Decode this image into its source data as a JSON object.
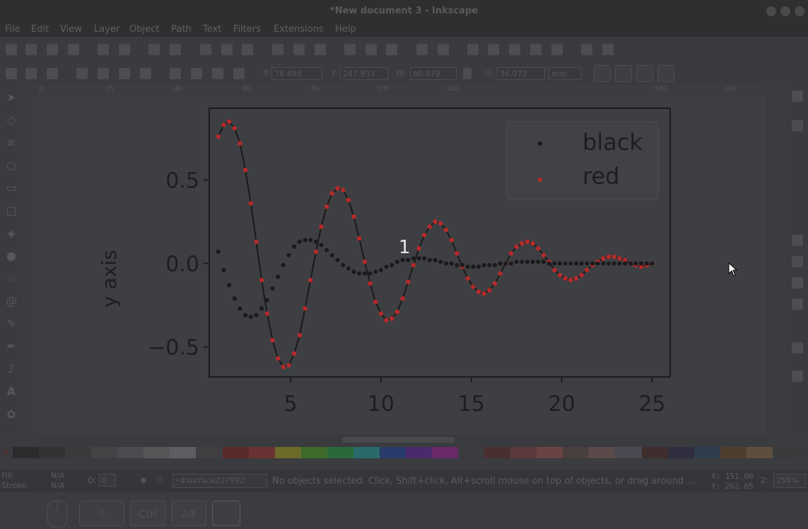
{
  "window": {
    "title": "*New document 3 - Inkscape"
  },
  "menu": [
    "File",
    "Edit",
    "View",
    "Layer",
    "Object",
    "Path",
    "Text",
    "Filters",
    "Extensions",
    "Help"
  ],
  "toolbar2": {
    "x_label": "X:",
    "x_value": "78.498",
    "y_label": "Y:",
    "y_value": "247.933",
    "w_label": "W:",
    "w_value": "60.879",
    "h_label": "H:",
    "h_value": "36.073",
    "unit": "mm"
  },
  "ruler_top": [
    "0",
    "20",
    "40",
    "60",
    "80",
    "100",
    "120",
    "140",
    "150"
  ],
  "key_hints": {
    "ctrl": "Ctrl",
    "alt": "Alt"
  },
  "status": {
    "fill_label": "Fill:",
    "fill_value": "N/A",
    "stroke_label": "Stroke:",
    "stroke_value": "N/A",
    "opacity_label": "O:",
    "opacity_value": "0",
    "layer": "•#surface237992",
    "message": "No objects selected. Click, Shift+click, Alt+scroll mouse on top of objects, or drag around ...",
    "x_coord": "X: 151.00",
    "y_coord": "Y: 262.65",
    "zoom_label": "Z:",
    "zoom_value": "258%"
  },
  "palette_colors": [
    "#2c2c2e",
    "#333336",
    "#3b3b3e",
    "#444447",
    "#4c4c50",
    "#565659",
    "#5e5e62",
    "#404043",
    "#5a2a2a",
    "#6a3232",
    "#6e6a2a",
    "#3e6a2a",
    "#2a6a3a",
    "#2a6a6a",
    "#2a3a6a",
    "#4a2a6a",
    "#6a2a6a",
    "#3c3c40",
    "#4a2f2f",
    "#5a3a3a",
    "#6a4444",
    "#4a3f3f",
    "#5a4a4a",
    "#4a4a52",
    "#3e2e2e",
    "#2e2e3e",
    "#2e3e4e",
    "#4e3e2e",
    "#5e4e3e",
    "#3a3a3a"
  ],
  "annotation": "1",
  "chart_data": {
    "type": "line",
    "title": "",
    "xlabel": "",
    "ylabel": "y axis",
    "xlim": [
      0.5,
      26
    ],
    "ylim": [
      -0.68,
      0.93
    ],
    "xticks": [
      "5",
      "10",
      "15",
      "20",
      "25"
    ],
    "yticks": [
      "0.5",
      "0.0",
      "−0.5"
    ],
    "legend": {
      "placement": "top-right",
      "entries": [
        "black",
        "red"
      ]
    },
    "series": [
      {
        "name": "black",
        "color": "#1a1a1a",
        "style": "dots",
        "x": [
          1.0,
          1.3,
          1.6,
          1.9,
          2.2,
          2.5,
          2.8,
          3.1,
          3.4,
          3.7,
          4.0,
          4.3,
          4.6,
          4.9,
          5.2,
          5.5,
          5.8,
          6.1,
          6.4,
          6.7,
          7.0,
          7.3,
          7.6,
          7.9,
          8.2,
          8.5,
          8.8,
          9.1,
          9.4,
          9.7,
          10.0,
          10.3,
          10.6,
          10.9,
          11.2,
          11.5,
          11.8,
          12.1,
          12.4,
          12.7,
          13.0,
          13.3,
          13.6,
          13.9,
          14.2,
          14.5,
          14.8,
          15.1,
          15.4,
          15.7,
          16.0,
          16.3,
          16.6,
          16.9,
          17.2,
          17.5,
          17.8,
          18.1,
          18.4,
          18.7,
          19.0,
          19.3,
          19.6,
          19.9,
          20.2,
          20.5,
          20.8,
          21.1,
          21.4,
          21.7,
          22.0,
          22.3,
          22.6,
          22.9,
          23.2,
          23.5,
          23.8,
          24.1,
          24.4,
          24.7,
          25.0
        ],
        "y": [
          0.07,
          -0.04,
          -0.13,
          -0.21,
          -0.27,
          -0.31,
          -0.32,
          -0.31,
          -0.27,
          -0.22,
          -0.15,
          -0.08,
          -0.01,
          0.05,
          0.1,
          0.13,
          0.14,
          0.14,
          0.13,
          0.11,
          0.08,
          0.05,
          0.02,
          -0.01,
          -0.03,
          -0.05,
          -0.06,
          -0.06,
          -0.06,
          -0.05,
          -0.04,
          -0.02,
          -0.01,
          0.01,
          0.02,
          0.02,
          0.03,
          0.03,
          0.03,
          0.02,
          0.02,
          0.01,
          0.0,
          0.0,
          -0.01,
          -0.01,
          -0.02,
          -0.02,
          -0.02,
          -0.01,
          -0.01,
          -0.01,
          0.0,
          0.0,
          0.0,
          0.01,
          0.01,
          0.01,
          0.01,
          0.01,
          0.01,
          0.0,
          0.0,
          0.0,
          0.0,
          0.0,
          0.0,
          0.0,
          0.0,
          0.0,
          0.0,
          0.0,
          0.0,
          0.0,
          0.0,
          0.0,
          0.0,
          0.0,
          0.0,
          0.0,
          0.0
        ]
      },
      {
        "name": "red",
        "color": "#b52a2a",
        "style": "dots+line",
        "x": [
          1.0,
          1.3,
          1.6,
          1.9,
          2.2,
          2.5,
          2.8,
          3.1,
          3.4,
          3.7,
          4.0,
          4.3,
          4.6,
          4.9,
          5.2,
          5.5,
          5.8,
          6.1,
          6.4,
          6.7,
          7.0,
          7.3,
          7.6,
          7.9,
          8.2,
          8.5,
          8.8,
          9.1,
          9.4,
          9.7,
          10.0,
          10.3,
          10.6,
          10.9,
          11.2,
          11.5,
          11.8,
          12.1,
          12.4,
          12.7,
          13.0,
          13.3,
          13.6,
          13.9,
          14.2,
          14.5,
          14.8,
          15.1,
          15.4,
          15.7,
          16.0,
          16.3,
          16.6,
          16.9,
          17.2,
          17.5,
          17.8,
          18.1,
          18.4,
          18.7,
          19.0,
          19.3,
          19.6,
          19.9,
          20.2,
          20.5,
          20.8,
          21.1,
          21.4,
          21.7,
          22.0,
          22.3,
          22.6,
          22.9,
          23.2,
          23.5,
          23.8,
          24.1,
          24.4,
          24.7,
          25.0
        ],
        "y": [
          0.76,
          0.83,
          0.85,
          0.81,
          0.72,
          0.56,
          0.36,
          0.13,
          -0.1,
          -0.3,
          -0.46,
          -0.57,
          -0.62,
          -0.61,
          -0.54,
          -0.43,
          -0.27,
          -0.1,
          0.07,
          0.22,
          0.34,
          0.42,
          0.45,
          0.44,
          0.38,
          0.28,
          0.15,
          0.01,
          -0.12,
          -0.23,
          -0.3,
          -0.34,
          -0.33,
          -0.29,
          -0.21,
          -0.11,
          -0.01,
          0.09,
          0.17,
          0.22,
          0.25,
          0.24,
          0.2,
          0.14,
          0.06,
          -0.02,
          -0.09,
          -0.14,
          -0.17,
          -0.18,
          -0.16,
          -0.12,
          -0.06,
          0.0,
          0.06,
          0.1,
          0.12,
          0.13,
          0.12,
          0.09,
          0.05,
          0.01,
          -0.04,
          -0.07,
          -0.09,
          -0.1,
          -0.09,
          -0.07,
          -0.04,
          -0.01,
          0.01,
          0.03,
          0.04,
          0.04,
          0.03,
          0.02,
          0.0,
          -0.01,
          -0.02,
          -0.01,
          0.0
        ]
      }
    ]
  }
}
